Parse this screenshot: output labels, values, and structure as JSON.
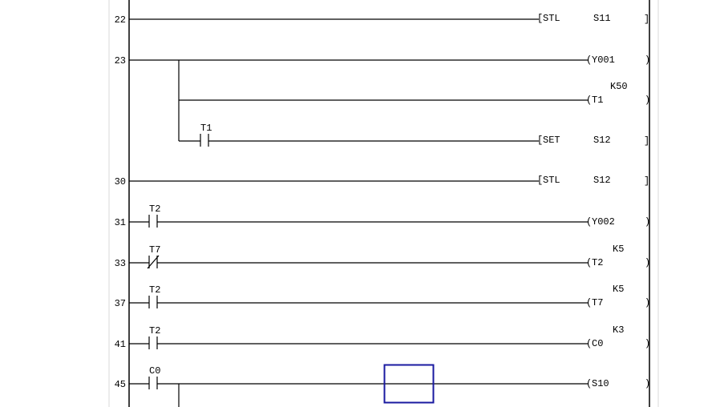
{
  "colors": {
    "line": "#000000",
    "cursor": "#1a1aa0",
    "gutter": "#d8d8d8"
  },
  "rungs": [
    {
      "step": "22",
      "contacts": [],
      "output": {
        "kind": "inst",
        "op": "STL",
        "arg": "S11"
      }
    },
    {
      "step": "23",
      "contacts": [],
      "output": {
        "kind": "coil",
        "name": "Y001"
      },
      "branches": [
        {
          "contacts": [],
          "output": {
            "kind": "coil",
            "name": "T1",
            "k": "K50"
          }
        },
        {
          "contacts": [
            {
              "name": "T1",
              "type": "NO"
            }
          ],
          "output": {
            "kind": "inst",
            "op": "SET",
            "arg": "S12"
          }
        }
      ]
    },
    {
      "step": "30",
      "contacts": [],
      "output": {
        "kind": "inst",
        "op": "STL",
        "arg": "S12"
      }
    },
    {
      "step": "31",
      "contacts": [
        {
          "name": "T2",
          "type": "NO"
        }
      ],
      "output": {
        "kind": "coil",
        "name": "Y002"
      }
    },
    {
      "step": "33",
      "contacts": [
        {
          "name": "T7",
          "type": "NC"
        }
      ],
      "output": {
        "kind": "coil",
        "name": "T2",
        "k": "K5"
      }
    },
    {
      "step": "37",
      "contacts": [
        {
          "name": "T2",
          "type": "NO"
        }
      ],
      "output": {
        "kind": "coil",
        "name": "T7",
        "k": "K5"
      }
    },
    {
      "step": "41",
      "contacts": [
        {
          "name": "T2",
          "type": "NO"
        }
      ],
      "output": {
        "kind": "coil",
        "name": "C0",
        "k": "K3"
      }
    },
    {
      "step": "45",
      "contacts": [
        {
          "name": "C0",
          "type": "NO"
        }
      ],
      "output": {
        "kind": "coil",
        "name": "S10"
      },
      "continues": true
    }
  ]
}
